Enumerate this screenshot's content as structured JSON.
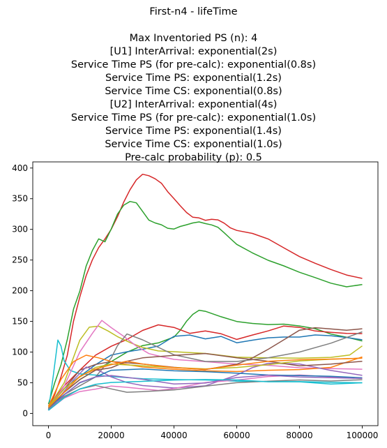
{
  "chart_data": {
    "type": "line",
    "title": "First-n4 - lifeTime",
    "subtitle_lines": [
      "Max Inventoried PS (n): 4",
      "[U1] InterArrival: exponential(2s)",
      "Service Time PS (for pre-calc): exponential(0.8s)",
      "Service Time PS: exponential(1.2s)",
      "Service Time CS: exponential(0.8s)",
      "[U2] InterArrival: exponential(4s)",
      "Service Time PS (for pre-calc): exponential(1.0s)",
      "Service Time PS: exponential(1.4s)",
      "Service Time CS: exponential(1.0s)",
      "Pre-calc probability (p): 0.5"
    ],
    "xlabel": "",
    "ylabel": "",
    "xlim": [
      -5000,
      105000
    ],
    "ylim": [
      -20,
      410
    ],
    "xticks": [
      0,
      20000,
      40000,
      60000,
      80000,
      100000
    ],
    "yticks": [
      0,
      50,
      100,
      150,
      200,
      250,
      300,
      350,
      400
    ],
    "grid": false,
    "legend": "none",
    "series": [
      {
        "color": "#d62728",
        "x": [
          0,
          2000,
          4000,
          6000,
          8000,
          10000,
          12000,
          14000,
          16000,
          18000,
          20000,
          22000,
          24000,
          26000,
          28000,
          30000,
          32000,
          34000,
          36000,
          38000,
          40000,
          42000,
          44000,
          46000,
          48000,
          50000,
          52000,
          54000,
          56000,
          58000,
          60000,
          65000,
          70000,
          75000,
          80000,
          85000,
          90000,
          95000,
          100000
        ],
        "y": [
          8,
          30,
          60,
          95,
          150,
          190,
          225,
          250,
          270,
          285,
          300,
          320,
          345,
          365,
          380,
          390,
          388,
          382,
          375,
          362,
          350,
          338,
          328,
          320,
          318,
          315,
          317,
          315,
          310,
          303,
          298,
          293,
          285,
          270,
          255,
          245,
          235,
          225,
          220
        ]
      },
      {
        "color": "#2ca02c",
        "x": [
          0,
          2000,
          4000,
          6000,
          8000,
          10000,
          12000,
          14000,
          16000,
          18000,
          20000,
          22000,
          24000,
          26000,
          28000,
          30000,
          32000,
          34000,
          36000,
          38000,
          40000,
          42000,
          44000,
          46000,
          48000,
          50000,
          52000,
          54000,
          56000,
          58000,
          60000,
          65000,
          70000,
          75000,
          80000,
          85000,
          90000,
          95000,
          100000
        ],
        "y": [
          15,
          50,
          80,
          120,
          170,
          200,
          240,
          265,
          285,
          280,
          300,
          325,
          340,
          345,
          343,
          330,
          315,
          310,
          308,
          302,
          300,
          305,
          308,
          310,
          312,
          310,
          307,
          303,
          295,
          285,
          275,
          262,
          250,
          240,
          230,
          222,
          212,
          206,
          210
        ]
      },
      {
        "color": "#2ca02c",
        "x": [
          0,
          5000,
          10000,
          15000,
          20000,
          25000,
          30000,
          35000,
          40000,
          42000,
          44000,
          46000,
          48000,
          50000,
          55000,
          60000,
          65000,
          70000,
          75000,
          80000,
          85000,
          90000,
          95000,
          100000
        ],
        "y": [
          10,
          35,
          55,
          70,
          85,
          100,
          110,
          115,
          125,
          135,
          150,
          162,
          168,
          166,
          158,
          150,
          146,
          145,
          146,
          142,
          138,
          130,
          124,
          118
        ]
      },
      {
        "color": "#d62728",
        "x": [
          0,
          5000,
          10000,
          15000,
          20000,
          25000,
          30000,
          35000,
          40000,
          45000,
          50000,
          55000,
          60000,
          65000,
          70000,
          75000,
          80000,
          85000,
          90000,
          95000,
          100000
        ],
        "y": [
          12,
          45,
          70,
          95,
          110,
          120,
          135,
          145,
          140,
          130,
          135,
          130,
          120,
          128,
          135,
          142,
          140,
          135,
          132,
          130,
          130
        ]
      },
      {
        "color": "#1f77b4",
        "x": [
          0,
          5000,
          10000,
          15000,
          20000,
          25000,
          30000,
          35000,
          40000,
          45000,
          50000,
          55000,
          60000,
          65000,
          70000,
          75000,
          80000,
          85000,
          90000,
          95000,
          100000
        ],
        "y": [
          10,
          40,
          60,
          80,
          95,
          100,
          105,
          110,
          125,
          128,
          122,
          125,
          115,
          120,
          123,
          124,
          125,
          128,
          126,
          124,
          120
        ]
      },
      {
        "color": "#17becf",
        "x": [
          0,
          1500,
          3000,
          4000,
          5000,
          7000,
          10000,
          15000,
          20000,
          30000,
          40000,
          50000,
          60000,
          70000,
          80000,
          90000,
          100000
        ],
        "y": [
          5,
          60,
          120,
          110,
          85,
          70,
          65,
          62,
          60,
          57,
          55,
          54,
          53,
          52,
          51,
          48,
          50
        ]
      },
      {
        "color": "#bcbd22",
        "x": [
          0,
          5000,
          10000,
          13000,
          16000,
          19000,
          22000,
          26000,
          30000,
          35000,
          40000,
          50000,
          60000,
          70000,
          80000,
          90000,
          96000,
          100000
        ],
        "y": [
          10,
          50,
          120,
          140,
          142,
          135,
          125,
          115,
          108,
          102,
          100,
          98,
          92,
          90,
          90,
          92,
          95,
          110
        ]
      },
      {
        "color": "#e377c2",
        "x": [
          0,
          5000,
          10000,
          14000,
          17000,
          20000,
          24000,
          28000,
          32000,
          36000,
          40000,
          50000,
          60000,
          70000,
          80000,
          90000,
          100000
        ],
        "y": [
          8,
          45,
          100,
          130,
          152,
          140,
          125,
          110,
          98,
          92,
          88,
          85,
          80,
          78,
          75,
          73,
          72
        ]
      },
      {
        "color": "#8c564b",
        "x": [
          0,
          5000,
          10000,
          15000,
          20000,
          30000,
          40000,
          50000,
          60000,
          65000,
          70000,
          75000,
          80000,
          85000,
          90000,
          95000,
          100000
        ],
        "y": [
          10,
          40,
          70,
          80,
          85,
          80,
          75,
          72,
          80,
          90,
          105,
          120,
          135,
          140,
          138,
          135,
          138
        ]
      },
      {
        "color": "#7f7f7f",
        "x": [
          0,
          5000,
          10000,
          15000,
          20000,
          22000,
          25000,
          30000,
          40000,
          50000,
          60000,
          70000,
          80000,
          90000,
          100000
        ],
        "y": [
          5,
          30,
          45,
          60,
          90,
          110,
          130,
          120,
          95,
          85,
          85,
          90,
          100,
          115,
          133
        ]
      },
      {
        "color": "#ff7f0e",
        "x": [
          0,
          4000,
          8000,
          12000,
          16000,
          20000,
          25000,
          30000,
          40000,
          50000,
          60000,
          70000,
          80000,
          90000,
          100000
        ],
        "y": [
          12,
          55,
          85,
          95,
          90,
          85,
          80,
          75,
          72,
          70,
          68,
          70,
          72,
          75,
          92
        ]
      },
      {
        "color": "#9467bd",
        "x": [
          0,
          4000,
          8000,
          12000,
          16000,
          20000,
          25000,
          30000,
          40000,
          50000,
          60000,
          65000,
          70000,
          80000,
          90000,
          100000
        ],
        "y": [
          6,
          30,
          55,
          75,
          70,
          60,
          50,
          45,
          42,
          45,
          62,
          75,
          82,
          80,
          70,
          62
        ]
      },
      {
        "color": "#8c564b",
        "x": [
          0,
          5000,
          10000,
          15000,
          20000,
          25000,
          30000,
          40000,
          50000,
          60000,
          70000,
          80000,
          90000,
          100000
        ],
        "y": [
          8,
          35,
          55,
          70,
          75,
          85,
          90,
          95,
          98,
          90,
          85,
          78,
          80,
          85
        ]
      },
      {
        "color": "#e377c2",
        "x": [
          0,
          5000,
          10000,
          15000,
          20000,
          25000,
          30000,
          35000,
          40000,
          50000,
          60000,
          70000,
          80000,
          90000,
          100000
        ],
        "y": [
          5,
          25,
          35,
          40,
          45,
          42,
          40,
          38,
          40,
          50,
          55,
          60,
          62,
          60,
          57
        ]
      },
      {
        "color": "#1f77b4",
        "x": [
          0,
          5000,
          10000,
          15000,
          20000,
          30000,
          40000,
          50000,
          60000,
          70000,
          80000,
          90000,
          100000
        ],
        "y": [
          10,
          30,
          50,
          60,
          70,
          72,
          70,
          68,
          65,
          63,
          62,
          60,
          58
        ]
      },
      {
        "color": "#bcbd22",
        "x": [
          0,
          5000,
          10000,
          15000,
          20000,
          30000,
          40000,
          50000,
          60000,
          70000,
          80000,
          90000,
          100000
        ],
        "y": [
          10,
          40,
          60,
          75,
          80,
          78,
          75,
          72,
          75,
          80,
          85,
          88,
          90
        ]
      },
      {
        "color": "#7f7f7f",
        "x": [
          0,
          5000,
          10000,
          15000,
          20000,
          25000,
          30000,
          40000,
          50000,
          60000,
          70000,
          80000,
          90000,
          100000
        ],
        "y": [
          8,
          28,
          40,
          45,
          40,
          35,
          35,
          38,
          45,
          50,
          52,
          55,
          53,
          55
        ]
      },
      {
        "color": "#ff7f0e",
        "x": [
          0,
          5000,
          10000,
          15000,
          20000,
          25000,
          30000,
          40000,
          50000,
          60000,
          70000,
          80000,
          90000,
          100000
        ],
        "y": [
          10,
          35,
          60,
          72,
          80,
          85,
          80,
          75,
          72,
          78,
          85,
          88,
          88,
          90
        ]
      },
      {
        "color": "#9467bd",
        "x": [
          0,
          5000,
          10000,
          15000,
          20000,
          30000,
          40000,
          50000,
          60000,
          70000,
          80000,
          90000,
          100000
        ],
        "y": [
          5,
          30,
          50,
          60,
          62,
          55,
          48,
          50,
          58,
          62,
          60,
          58,
          57
        ]
      },
      {
        "color": "#17becf",
        "x": [
          0,
          5000,
          10000,
          15000,
          20000,
          30000,
          40000,
          50000,
          60000,
          70000,
          80000,
          90000,
          100000
        ],
        "y": [
          5,
          25,
          40,
          48,
          50,
          52,
          55,
          55,
          54,
          52,
          52,
          50,
          50
        ]
      }
    ]
  }
}
